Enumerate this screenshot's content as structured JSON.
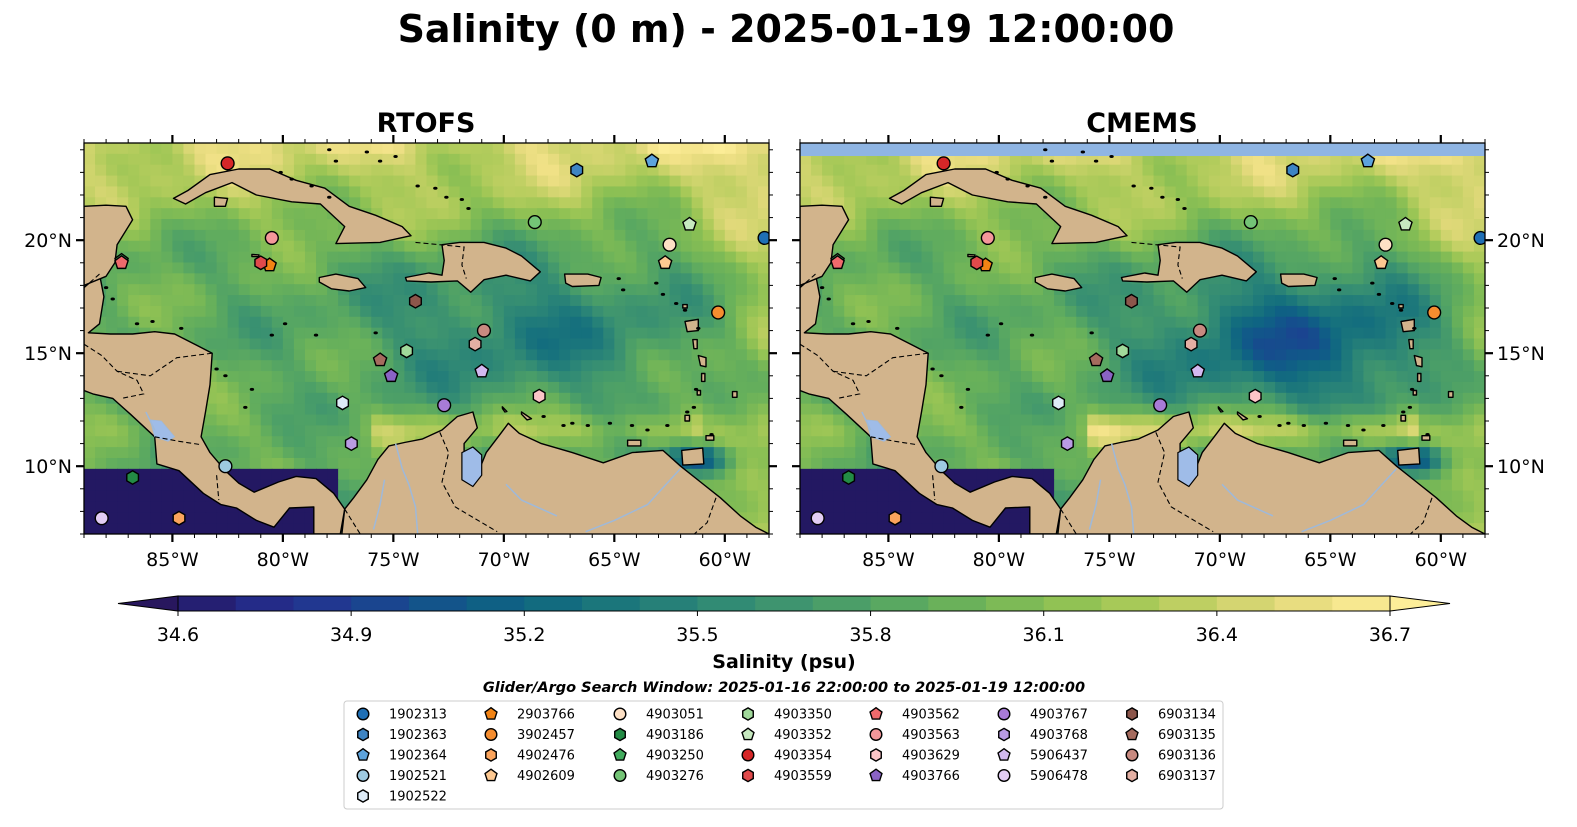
{
  "chart_data": {
    "type": "heatmap",
    "title": "Salinity (0 m) - 2025-01-19 12:00:00",
    "panels": [
      {
        "title": "RTOFS",
        "missing_band_top": false
      },
      {
        "title": "CMEMS",
        "missing_band_top": true
      }
    ],
    "map_extent": {
      "lon": [
        -89,
        -58
      ],
      "lat": [
        7,
        24.3
      ]
    },
    "lon_ticks": [
      -85,
      -80,
      -75,
      -70,
      -65,
      -60
    ],
    "lon_tick_labels": [
      "85°W",
      "80°W",
      "75°W",
      "70°W",
      "65°W",
      "60°W"
    ],
    "lat_ticks": [
      10,
      15,
      20
    ],
    "lat_tick_labels": [
      "10°N",
      "15°N",
      "20°N"
    ],
    "colorbar": {
      "label": "Salinity (psu)",
      "vmin": 34.6,
      "vmax": 36.7,
      "ticks": [
        "34.6",
        "34.9",
        "35.2",
        "35.5",
        "35.8",
        "36.1",
        "36.4",
        "36.7"
      ],
      "extend": "both",
      "colormap": "haline",
      "colors": [
        "#231862",
        "#262580",
        "#232f8e",
        "#1f3c92",
        "#174a8e",
        "#115889",
        "#0f6383",
        "#136d7e",
        "#1c777b",
        "#278178",
        "#328b74",
        "#3e946f",
        "#4a9e68",
        "#58a762",
        "#67b05b",
        "#79b856",
        "#8cc054",
        "#a1c756",
        "#b7cd5e",
        "#ccd36b",
        "#e1d97a",
        "#f2e288",
        "#fdee99"
      ],
      "under_color": "#28175e",
      "over_color": "#fdee99"
    },
    "land_color": "#d2b48c",
    "lake_color": "#9fbce8",
    "nodata_color": "#8fb5e3",
    "search_window": "Glider/Argo Search Window: 2025-01-16 22:00:00 to 2025-01-19 12:00:00",
    "legend_placement": "bottom-center",
    "floats": [
      {
        "id": "1902313",
        "marker": "circle",
        "color": "#1f6fb5",
        "lon": -58.2,
        "lat": 20.1
      },
      {
        "id": "1902363",
        "marker": "hexagon",
        "color": "#3d84c3",
        "lon": -66.7,
        "lat": 23.1
      },
      {
        "id": "1902364",
        "marker": "pentagon",
        "color": "#5da3dc",
        "lon": -63.3,
        "lat": 23.5
      },
      {
        "id": "1902521",
        "marker": "circle",
        "color": "#9ecae1",
        "lon": -82.6,
        "lat": 10.0
      },
      {
        "id": "1902522",
        "marker": "hexagon",
        "color": "#deebf7",
        "lon": -77.3,
        "lat": 12.8
      },
      {
        "id": "2903766",
        "marker": "pentagon",
        "color": "#f28314",
        "lon": -80.6,
        "lat": 18.9
      },
      {
        "id": "3902457",
        "marker": "circle",
        "color": "#f58d2f",
        "lon": -60.3,
        "lat": 16.8
      },
      {
        "id": "4902476",
        "marker": "hexagon",
        "color": "#fba45c",
        "lon": -84.7,
        "lat": 7.7
      },
      {
        "id": "4902609",
        "marker": "pentagon",
        "color": "#fdc891",
        "lon": -62.7,
        "lat": 19.0
      },
      {
        "id": "4903051",
        "marker": "circle",
        "color": "#fde0c5",
        "lon": -62.5,
        "lat": 19.8
      },
      {
        "id": "4903186",
        "marker": "hexagon",
        "color": "#238b45",
        "lon": -86.8,
        "lat": 9.5
      },
      {
        "id": "4903250",
        "marker": "pentagon",
        "color": "#41ab5d",
        "lon": -87.3,
        "lat": 19.1
      },
      {
        "id": "4903276",
        "marker": "circle",
        "color": "#74c476",
        "lon": -68.6,
        "lat": 20.8
      },
      {
        "id": "4903350",
        "marker": "hexagon",
        "color": "#a1d99b",
        "lon": -74.4,
        "lat": 15.1
      },
      {
        "id": "4903352",
        "marker": "pentagon",
        "color": "#c7e9c0",
        "lon": -61.6,
        "lat": 20.7
      },
      {
        "id": "4903354",
        "marker": "circle",
        "color": "#d62728",
        "lon": -82.5,
        "lat": 23.4
      },
      {
        "id": "4903559",
        "marker": "hexagon",
        "color": "#e04a4b",
        "lon": -81.0,
        "lat": 19.0
      },
      {
        "id": "4903562",
        "marker": "pentagon",
        "color": "#ef6a6c",
        "lon": -87.3,
        "lat": 19.0
      },
      {
        "id": "4903563",
        "marker": "circle",
        "color": "#f4979a",
        "lon": -80.5,
        "lat": 20.1
      },
      {
        "id": "4903629",
        "marker": "hexagon",
        "color": "#fcc5c7",
        "lon": -68.4,
        "lat": 13.1
      },
      {
        "id": "4903766",
        "marker": "pentagon",
        "color": "#8a63c5",
        "lon": -75.1,
        "lat": 14.0
      },
      {
        "id": "4903767",
        "marker": "circle",
        "color": "#a87bd6",
        "lon": -72.7,
        "lat": 12.7
      },
      {
        "id": "4903768",
        "marker": "hexagon",
        "color": "#b99be3",
        "lon": -76.9,
        "lat": 11.0
      },
      {
        "id": "5906437",
        "marker": "pentagon",
        "color": "#d2b9f0",
        "lon": -71.0,
        "lat": 14.2
      },
      {
        "id": "5906478",
        "marker": "circle",
        "color": "#e2cdf4",
        "lon": -88.2,
        "lat": 7.7
      },
      {
        "id": "6903134",
        "marker": "hexagon",
        "color": "#8c564b",
        "lon": -74.0,
        "lat": 17.3
      },
      {
        "id": "6903135",
        "marker": "pentagon",
        "color": "#a56b5e",
        "lon": -75.6,
        "lat": 14.7
      },
      {
        "id": "6903136",
        "marker": "circle",
        "color": "#c88a80",
        "lon": -70.9,
        "lat": 16.0
      },
      {
        "id": "6903137",
        "marker": "hexagon",
        "color": "#e3afa3",
        "lon": -71.3,
        "lat": 15.4
      }
    ]
  }
}
